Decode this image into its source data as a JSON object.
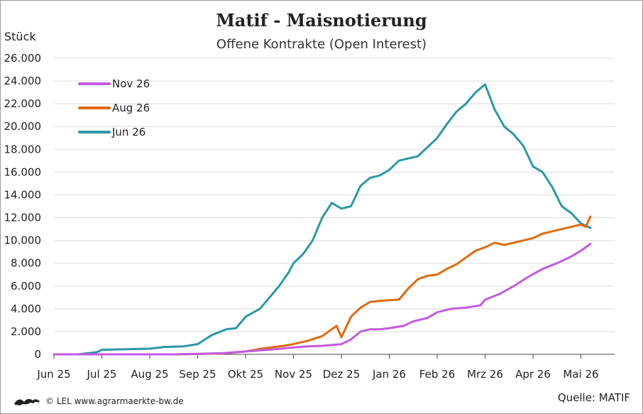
{
  "chart_data": {
    "type": "line",
    "title": "Matif - Maisnotierung",
    "subtitle": "Offene Kontrakte (Open Interest)",
    "ylabel": "Stück",
    "xlabel": "",
    "ylim": [
      0,
      26000
    ],
    "yticks": [
      0,
      2000,
      4000,
      6000,
      8000,
      10000,
      12000,
      14000,
      16000,
      18000,
      20000,
      22000,
      24000,
      26000
    ],
    "ytick_labels": [
      "0",
      "2.000",
      "4.000",
      "6.000",
      "8.000",
      "10.000",
      "12.000",
      "14.000",
      "16.000",
      "18.000",
      "20.000",
      "22.000",
      "24.000",
      "26.000"
    ],
    "xtick_labels": [
      "Jun 25",
      "Jul 25",
      "Aug 25",
      "Sep 25",
      "Okt 25",
      "Nov 25",
      "Dez 25",
      "Jan 26",
      "Feb 26",
      "Mrz 26",
      "Apr 26",
      "Mai 26"
    ],
    "x_unit": "month index (0 = Jun 25)",
    "grid": "horizontal",
    "legend_position": "top-left",
    "series": [
      {
        "name": "Nov 26",
        "color": "#c45ae0",
        "x": [
          0,
          0.5,
          1,
          1.5,
          2,
          2.5,
          3,
          3.5,
          4,
          4.3,
          4.6,
          5,
          5.3,
          5.6,
          6,
          6.2,
          6.4,
          6.6,
          6.8,
          7,
          7.3,
          7.5,
          7.8,
          8.0,
          8.3,
          8.6,
          8.9,
          9.0,
          9.3,
          9.6,
          9.9,
          10.2,
          10.5,
          10.8,
          11.0,
          11.2
        ],
        "values": [
          0,
          0,
          0,
          0,
          0,
          0,
          50,
          100,
          250,
          350,
          450,
          600,
          700,
          750,
          900,
          1300,
          2000,
          2200,
          2200,
          2300,
          2500,
          2900,
          3200,
          3700,
          4000,
          4100,
          4300,
          4800,
          5300,
          6000,
          6800,
          7500,
          8000,
          8600,
          9100,
          9700
        ]
      },
      {
        "name": "Aug 26",
        "color": "#e06a10",
        "x": [
          2.5,
          3,
          3.5,
          4,
          4.2,
          4.5,
          4.8,
          5,
          5.3,
          5.6,
          5.8,
          5.9,
          6.0,
          6.2,
          6.4,
          6.6,
          6.8,
          7.0,
          7.2,
          7.4,
          7.6,
          7.8,
          8.0,
          8.2,
          8.4,
          8.6,
          8.8,
          9.0,
          9.2,
          9.4,
          9.6,
          9.8,
          10.0,
          10.2,
          10.4,
          10.6,
          10.8,
          11.0,
          11.1,
          11.2
        ],
        "values": [
          0,
          30,
          80,
          250,
          400,
          600,
          750,
          900,
          1200,
          1600,
          2200,
          2500,
          1500,
          3300,
          4100,
          4600,
          4700,
          4750,
          4800,
          5800,
          6600,
          6900,
          7000,
          7500,
          7900,
          8500,
          9100,
          9400,
          9800,
          9600,
          9800,
          10000,
          10200,
          10600,
          10800,
          11000,
          11200,
          11400,
          11200,
          12100
        ]
      },
      {
        "name": "Jun 26",
        "color": "#2b98a8",
        "x": [
          0,
          0.5,
          0.9,
          1.0,
          1.5,
          2.0,
          2.3,
          2.7,
          3.0,
          3.3,
          3.6,
          3.8,
          4.0,
          4.3,
          4.5,
          4.7,
          4.9,
          5.0,
          5.2,
          5.4,
          5.6,
          5.8,
          6.0,
          6.2,
          6.4,
          6.6,
          6.8,
          7.0,
          7.2,
          7.4,
          7.6,
          7.8,
          8.0,
          8.2,
          8.4,
          8.6,
          8.8,
          9.0,
          9.2,
          9.4,
          9.6,
          9.8,
          10.0,
          10.2,
          10.4,
          10.6,
          10.8,
          11.0,
          11.2
        ],
        "values": [
          0,
          0,
          200,
          400,
          450,
          500,
          650,
          700,
          900,
          1700,
          2200,
          2300,
          3300,
          4000,
          5000,
          6000,
          7200,
          8000,
          8800,
          10000,
          12000,
          13300,
          12800,
          13000,
          14800,
          15500,
          15700,
          16200,
          17000,
          17200,
          17400,
          18200,
          19000,
          20200,
          21300,
          22000,
          23000,
          23700,
          21500,
          20000,
          19300,
          18300,
          16500,
          16000,
          14700,
          13000,
          12400,
          11500,
          11100
        ]
      }
    ]
  },
  "footer": {
    "credit": "© LEL www.agrarmaerkte-bw.de",
    "source": "Quelle: MATIF"
  },
  "logo_icon": "lion-crest-icon"
}
